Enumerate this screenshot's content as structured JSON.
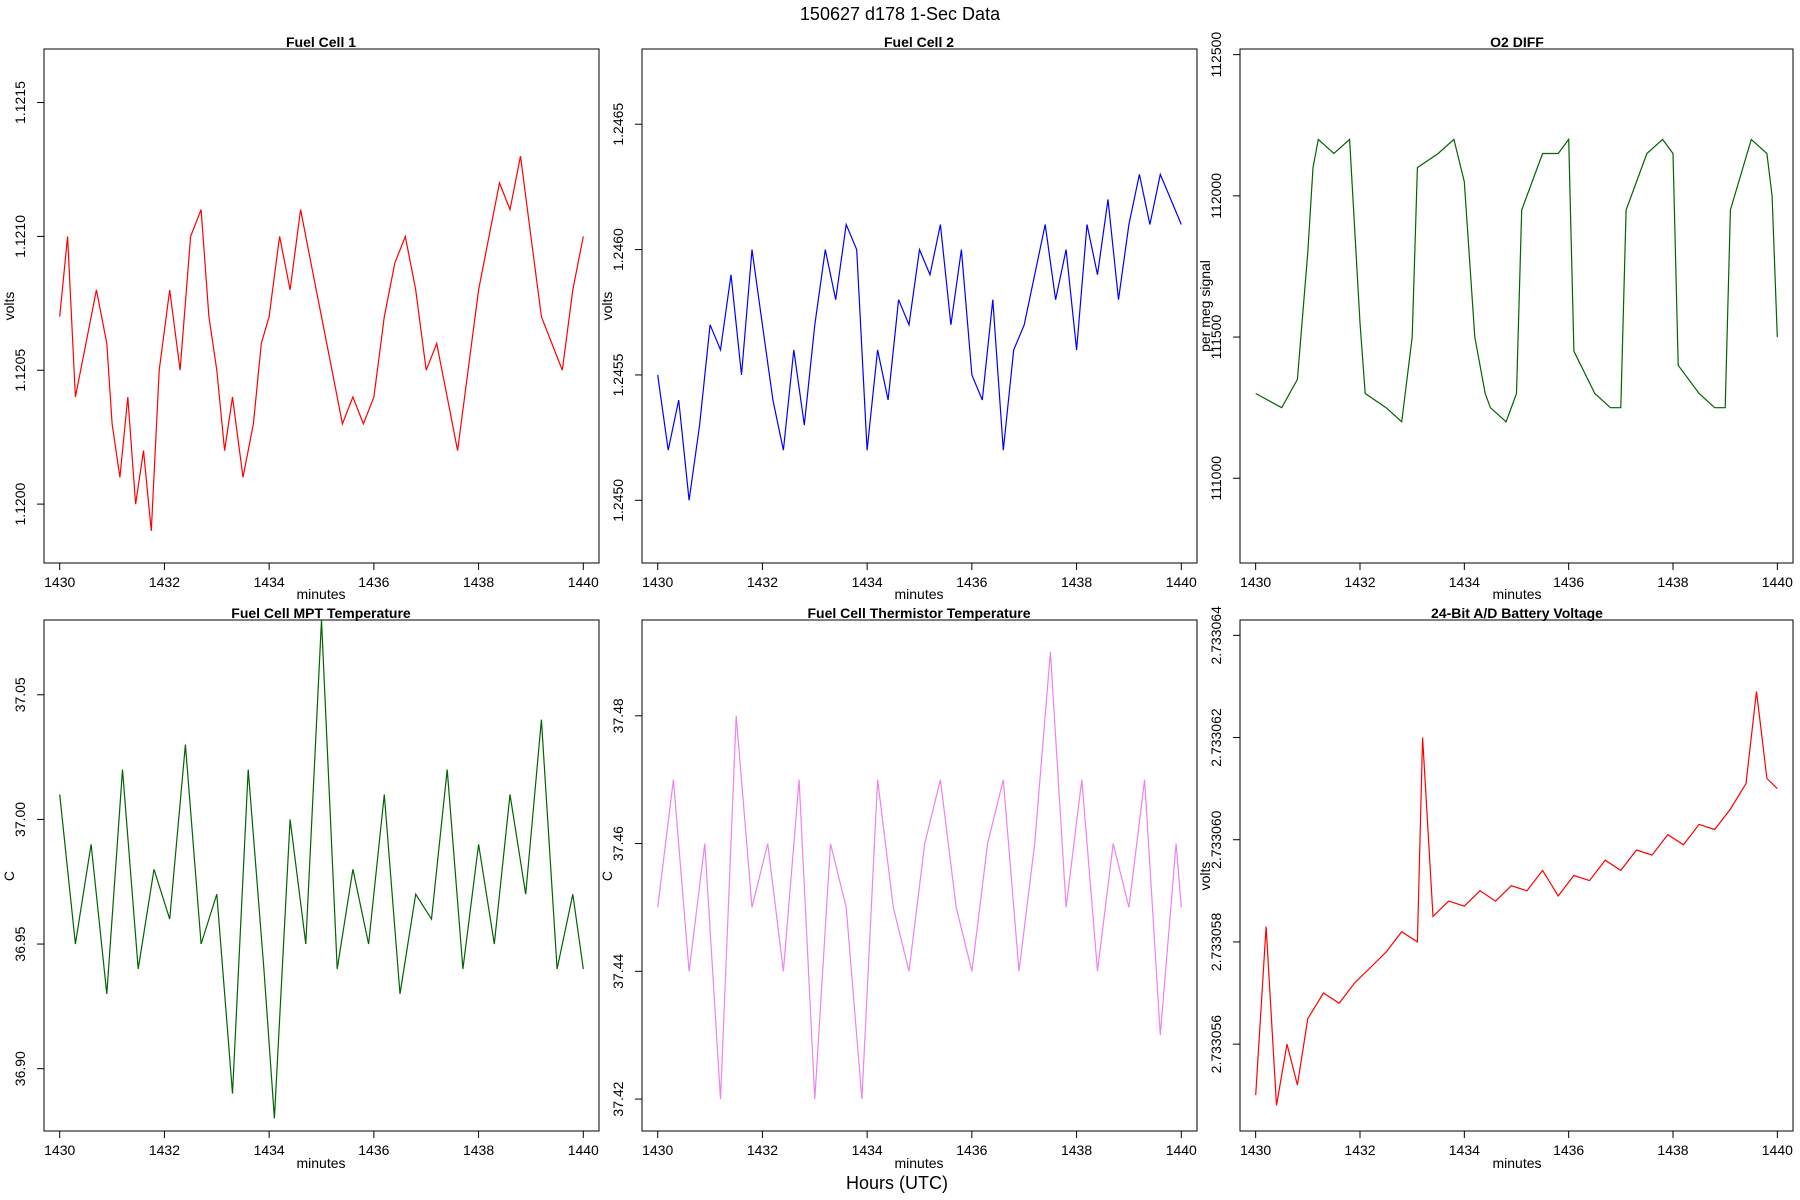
{
  "figure": {
    "title": "150627   d178   1-Sec Data",
    "footer_xlabel": "Hours (UTC)"
  },
  "chart_data": [
    {
      "type": "line",
      "title": "Fuel Cell 1",
      "xlabel": "minutes",
      "ylabel": "volts",
      "color": "#ff0000",
      "xlim": [
        1429.7,
        1440.3
      ],
      "ylim": [
        1.11978,
        1.1217
      ],
      "xticks": [
        1430,
        1432,
        1434,
        1436,
        1438,
        1440
      ],
      "yticks": [
        1.12,
        1.1205,
        1.121,
        1.1215
      ],
      "ytick_labels": [
        "1.1200",
        "1.1205",
        "1.1210",
        "1.1215"
      ],
      "series": [
        {
          "x": [
            1430.0,
            1430.15,
            1430.3,
            1430.5,
            1430.7,
            1430.9,
            1431.0,
            1431.15,
            1431.3,
            1431.45,
            1431.6,
            1431.75,
            1431.9,
            1432.1,
            1432.3,
            1432.5,
            1432.7,
            1432.85,
            1433.0,
            1433.15,
            1433.3,
            1433.5,
            1433.7,
            1433.85,
            1434.0,
            1434.2,
            1434.4,
            1434.6,
            1434.8,
            1435.0,
            1435.2,
            1435.4,
            1435.6,
            1435.8,
            1436.0,
            1436.2,
            1436.4,
            1436.6,
            1436.8,
            1437.0,
            1437.2,
            1437.4,
            1437.6,
            1437.8,
            1438.0,
            1438.2,
            1438.4,
            1438.6,
            1438.8,
            1439.0,
            1439.2,
            1439.4,
            1439.6,
            1439.8,
            1440.0
          ],
          "y": [
            1.1207,
            1.121,
            1.1204,
            1.1206,
            1.1208,
            1.1206,
            1.1203,
            1.1201,
            1.1204,
            1.12,
            1.1202,
            1.1199,
            1.1205,
            1.1208,
            1.1205,
            1.121,
            1.1211,
            1.1207,
            1.1205,
            1.1202,
            1.1204,
            1.1201,
            1.1203,
            1.1206,
            1.1207,
            1.121,
            1.1208,
            1.1211,
            1.1209,
            1.1207,
            1.1205,
            1.1203,
            1.1204,
            1.1203,
            1.1204,
            1.1207,
            1.1209,
            1.121,
            1.1208,
            1.1205,
            1.1206,
            1.1204,
            1.1202,
            1.1205,
            1.1208,
            1.121,
            1.1212,
            1.1211,
            1.1213,
            1.121,
            1.1207,
            1.1206,
            1.1205,
            1.1208,
            1.121
          ]
        }
      ]
    },
    {
      "type": "line",
      "title": "Fuel Cell 2",
      "xlabel": "minutes",
      "ylabel": "volts",
      "color": "#0000ff",
      "xlim": [
        1429.7,
        1440.3
      ],
      "ylim": [
        1.24475,
        1.2468
      ],
      "xticks": [
        1430,
        1432,
        1434,
        1436,
        1438,
        1440
      ],
      "yticks": [
        1.245,
        1.2455,
        1.246,
        1.2465
      ],
      "ytick_labels": [
        "1.2450",
        "1.2455",
        "1.2460",
        "1.2465"
      ],
      "series": [
        {
          "x": [
            1430.0,
            1430.2,
            1430.4,
            1430.6,
            1430.8,
            1431.0,
            1431.2,
            1431.4,
            1431.6,
            1431.8,
            1432.0,
            1432.2,
            1432.4,
            1432.6,
            1432.8,
            1433.0,
            1433.2,
            1433.4,
            1433.6,
            1433.8,
            1434.0,
            1434.2,
            1434.4,
            1434.6,
            1434.8,
            1435.0,
            1435.2,
            1435.4,
            1435.6,
            1435.8,
            1436.0,
            1436.2,
            1436.4,
            1436.6,
            1436.8,
            1437.0,
            1437.2,
            1437.4,
            1437.6,
            1437.8,
            1438.0,
            1438.2,
            1438.4,
            1438.6,
            1438.8,
            1439.0,
            1439.2,
            1439.4,
            1439.6,
            1439.8,
            1440.0
          ],
          "y": [
            1.2455,
            1.2452,
            1.2454,
            1.245,
            1.2453,
            1.2457,
            1.2456,
            1.2459,
            1.2455,
            1.246,
            1.2457,
            1.2454,
            1.2452,
            1.2456,
            1.2453,
            1.2457,
            1.246,
            1.2458,
            1.2461,
            1.246,
            1.2452,
            1.2456,
            1.2454,
            1.2458,
            1.2457,
            1.246,
            1.2459,
            1.2461,
            1.2457,
            1.246,
            1.2455,
            1.2454,
            1.2458,
            1.2452,
            1.2456,
            1.2457,
            1.2459,
            1.2461,
            1.2458,
            1.246,
            1.2456,
            1.2461,
            1.2459,
            1.2462,
            1.2458,
            1.2461,
            1.2463,
            1.2461,
            1.2463,
            1.2462,
            1.2461
          ]
        }
      ]
    },
    {
      "type": "line",
      "title": "O2 DIFF",
      "xlabel": "minutes",
      "ylabel": "per meg signal",
      "color": "#006400",
      "xlim": [
        1429.7,
        1440.3
      ],
      "ylim": [
        110700,
        112520
      ],
      "xticks": [
        1430,
        1432,
        1434,
        1436,
        1438,
        1440
      ],
      "yticks": [
        111000,
        111500,
        112000,
        112500
      ],
      "ytick_labels": [
        "111000",
        "111500",
        "112000",
        "112500"
      ],
      "series": [
        {
          "x": [
            1430.0,
            1430.5,
            1430.8,
            1431.0,
            1431.1,
            1431.2,
            1431.5,
            1431.8,
            1432.0,
            1432.1,
            1432.5,
            1432.8,
            1433.0,
            1433.1,
            1433.5,
            1433.8,
            1434.0,
            1434.2,
            1434.4,
            1434.5,
            1434.8,
            1435.0,
            1435.1,
            1435.5,
            1435.8,
            1436.0,
            1436.1,
            1436.5,
            1436.8,
            1437.0,
            1437.1,
            1437.5,
            1437.8,
            1438.0,
            1438.1,
            1438.5,
            1438.8,
            1439.0,
            1439.1,
            1439.5,
            1439.8,
            1439.9,
            1440.0
          ],
          "y": [
            111300,
            111250,
            111350,
            111800,
            112100,
            112200,
            112150,
            112200,
            111550,
            111300,
            111250,
            111200,
            111500,
            112100,
            112150,
            112200,
            112050,
            111500,
            111300,
            111250,
            111200,
            111300,
            111950,
            112150,
            112150,
            112200,
            111450,
            111300,
            111250,
            111250,
            111950,
            112150,
            112200,
            112150,
            111400,
            111300,
            111250,
            111250,
            111950,
            112200,
            112150,
            112000,
            111500
          ]
        }
      ]
    },
    {
      "type": "line",
      "title": "Fuel Cell MPT Temperature",
      "xlabel": "minutes",
      "ylabel": "C",
      "color": "#006400",
      "xlim": [
        1429.7,
        1440.3
      ],
      "ylim": [
        36.875,
        37.08
      ],
      "xticks": [
        1430,
        1432,
        1434,
        1436,
        1438,
        1440
      ],
      "yticks": [
        36.9,
        36.95,
        37.0,
        37.05
      ],
      "ytick_labels": [
        "36.90",
        "36.95",
        "37.00",
        "37.05"
      ],
      "series": [
        {
          "x": [
            1430.0,
            1430.3,
            1430.6,
            1430.9,
            1431.2,
            1431.5,
            1431.8,
            1432.1,
            1432.4,
            1432.7,
            1433.0,
            1433.3,
            1433.6,
            1433.9,
            1434.1,
            1434.4,
            1434.7,
            1435.0,
            1435.3,
            1435.6,
            1435.9,
            1436.2,
            1436.5,
            1436.8,
            1437.1,
            1437.4,
            1437.7,
            1438.0,
            1438.3,
            1438.6,
            1438.9,
            1439.2,
            1439.5,
            1439.8,
            1440.0
          ],
          "y": [
            37.01,
            36.95,
            36.99,
            36.93,
            37.02,
            36.94,
            36.98,
            36.96,
            37.03,
            36.95,
            36.97,
            36.89,
            37.02,
            36.94,
            36.88,
            37.0,
            36.95,
            37.08,
            36.94,
            36.98,
            36.95,
            37.01,
            36.93,
            36.97,
            36.96,
            37.02,
            36.94,
            36.99,
            36.95,
            37.01,
            36.97,
            37.04,
            36.94,
            36.97,
            36.94
          ]
        }
      ]
    },
    {
      "type": "line",
      "title": "Fuel Cell Thermistor Temperature",
      "xlabel": "minutes",
      "ylabel": "C",
      "color": "#ee82ee",
      "xlim": [
        1429.7,
        1440.3
      ],
      "ylim": [
        37.415,
        37.495
      ],
      "xticks": [
        1430,
        1432,
        1434,
        1436,
        1438,
        1440
      ],
      "yticks": [
        37.42,
        37.44,
        37.46,
        37.48
      ],
      "ytick_labels": [
        "37.42",
        "37.44",
        "37.46",
        "37.48"
      ],
      "series": [
        {
          "x": [
            1430.0,
            1430.3,
            1430.6,
            1430.9,
            1431.2,
            1431.5,
            1431.8,
            1432.1,
            1432.4,
            1432.7,
            1433.0,
            1433.3,
            1433.6,
            1433.9,
            1434.2,
            1434.5,
            1434.8,
            1435.1,
            1435.4,
            1435.7,
            1436.0,
            1436.3,
            1436.6,
            1436.9,
            1437.2,
            1437.5,
            1437.8,
            1438.1,
            1438.4,
            1438.7,
            1439.0,
            1439.3,
            1439.6,
            1439.9,
            1440.0
          ],
          "y": [
            37.45,
            37.47,
            37.44,
            37.46,
            37.42,
            37.48,
            37.45,
            37.46,
            37.44,
            37.47,
            37.42,
            37.46,
            37.45,
            37.42,
            37.47,
            37.45,
            37.44,
            37.46,
            37.47,
            37.45,
            37.44,
            37.46,
            37.47,
            37.44,
            37.46,
            37.49,
            37.45,
            37.47,
            37.44,
            37.46,
            37.45,
            37.47,
            37.43,
            37.46,
            37.45
          ]
        }
      ]
    },
    {
      "type": "line",
      "title": "24-Bit A/D Battery Voltage",
      "xlabel": "minutes",
      "ylabel": "volts",
      "color": "#ff0000",
      "xlim": [
        1429.7,
        1440.3
      ],
      "ylim": [
        2.7330543,
        2.7330643
      ],
      "xticks": [
        1430,
        1432,
        1434,
        1436,
        1438,
        1440
      ],
      "yticks": [
        2.733056,
        2.733058,
        2.73306,
        2.733062,
        2.733064
      ],
      "ytick_labels": [
        "2.733056",
        "2.733058",
        "2.733060",
        "2.733062",
        "2.733064"
      ],
      "series": [
        {
          "x": [
            1430.0,
            1430.2,
            1430.4,
            1430.6,
            1430.8,
            1431.0,
            1431.3,
            1431.6,
            1431.9,
            1432.2,
            1432.5,
            1432.8,
            1433.1,
            1433.2,
            1433.4,
            1433.7,
            1434.0,
            1434.3,
            1434.6,
            1434.9,
            1435.2,
            1435.5,
            1435.8,
            1436.1,
            1436.4,
            1436.7,
            1437.0,
            1437.3,
            1437.6,
            1437.9,
            1438.2,
            1438.5,
            1438.8,
            1439.1,
            1439.4,
            1439.6,
            1439.8,
            1440.0
          ],
          "y": [
            2.733055,
            2.7330583,
            2.7330548,
            2.733056,
            2.7330552,
            2.7330565,
            2.733057,
            2.7330568,
            2.7330572,
            2.7330575,
            2.7330578,
            2.7330582,
            2.733058,
            2.733062,
            2.7330585,
            2.7330588,
            2.7330587,
            2.733059,
            2.7330588,
            2.7330591,
            2.733059,
            2.7330594,
            2.7330589,
            2.7330593,
            2.7330592,
            2.7330596,
            2.7330594,
            2.7330598,
            2.7330597,
            2.7330601,
            2.7330599,
            2.7330603,
            2.7330602,
            2.7330606,
            2.7330611,
            2.7330629,
            2.7330612,
            2.733061
          ]
        }
      ]
    }
  ]
}
